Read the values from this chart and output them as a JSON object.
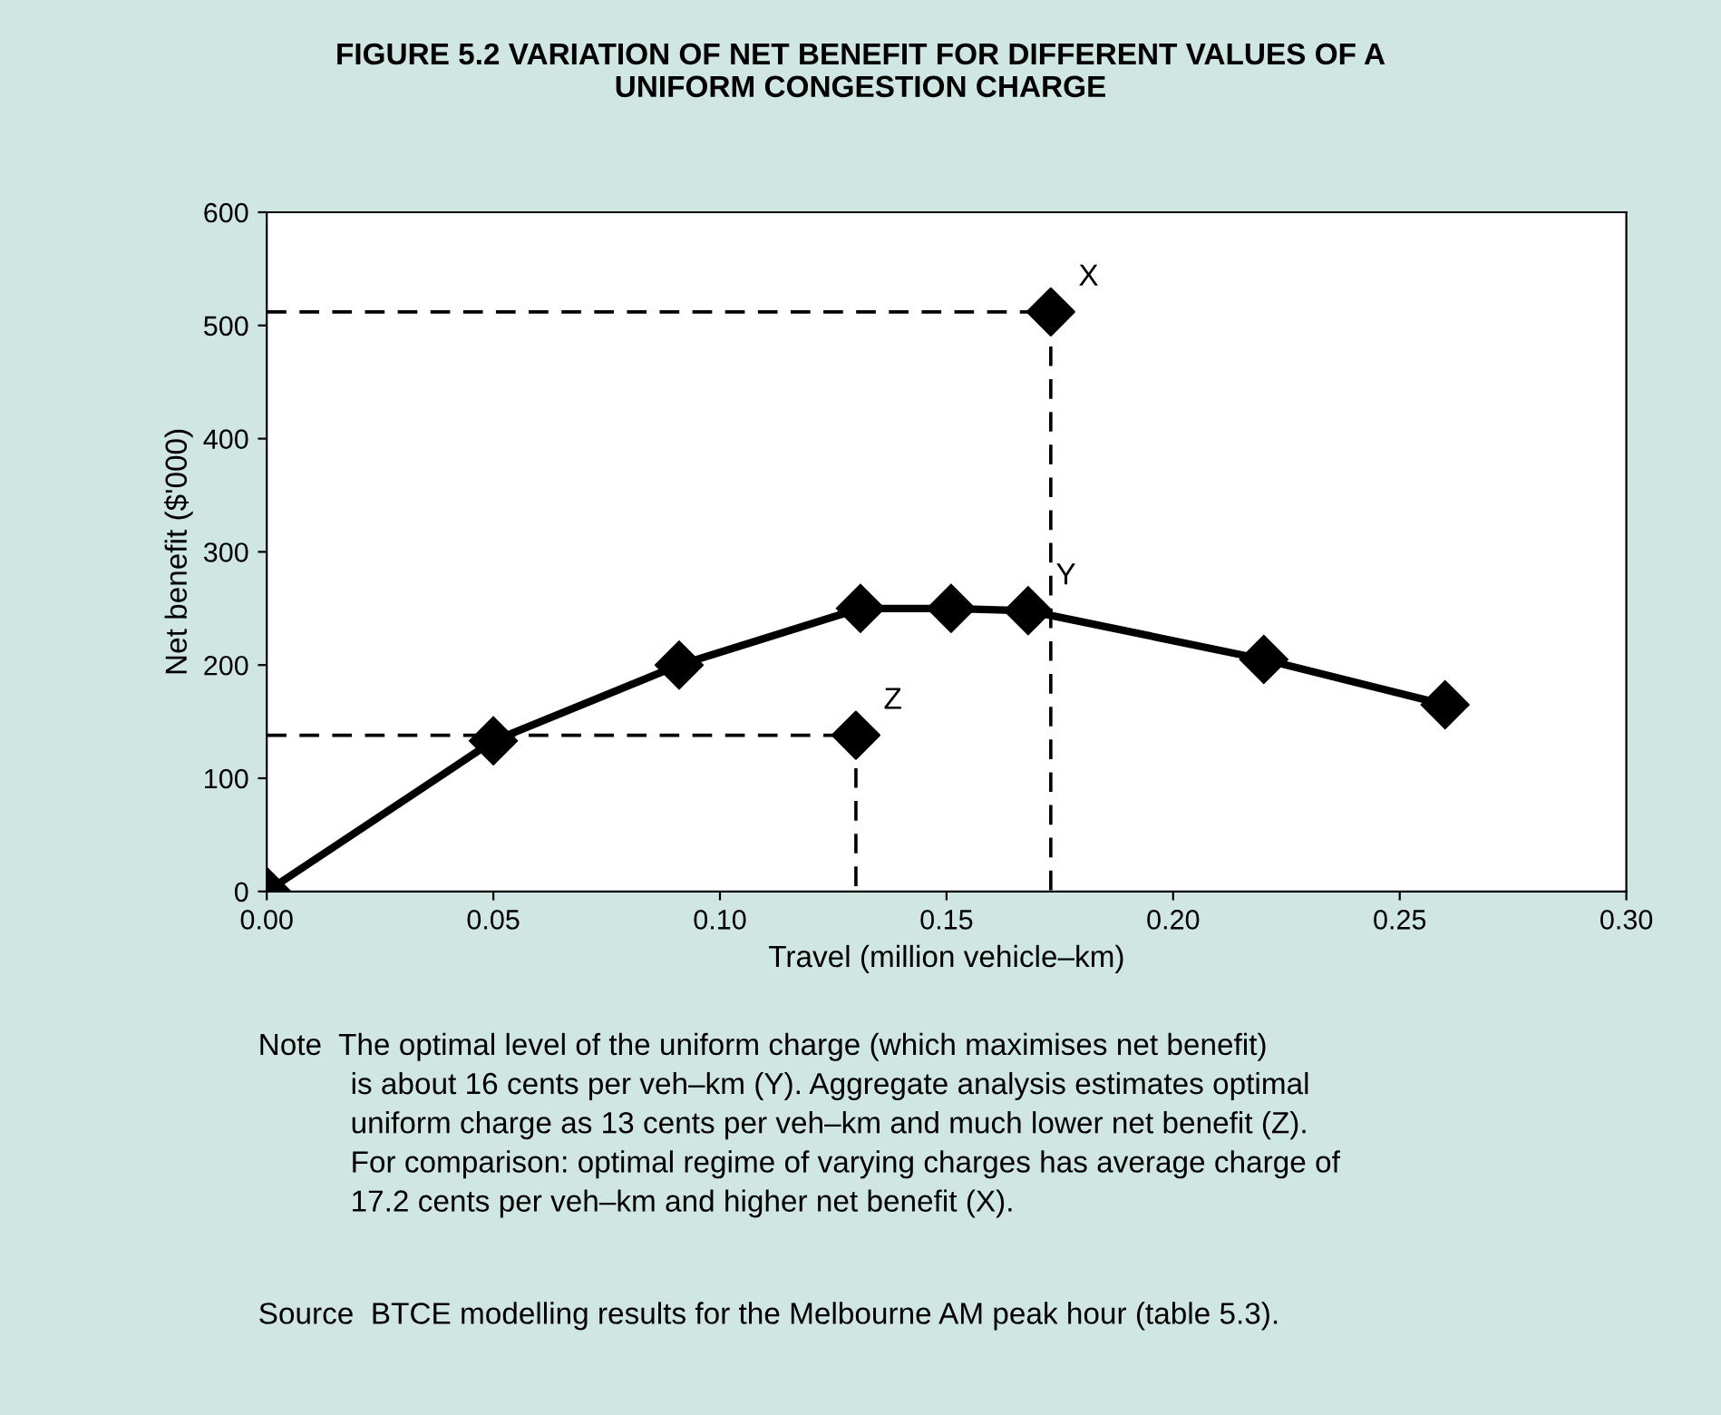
{
  "chart_data": {
    "type": "line",
    "title": "FIGURE 5.2 VARIATION OF NET BENEFIT FOR DIFFERENT VALUES OF A\nUNIFORM CONGESTION CHARGE",
    "xlabel": "Travel (million vehicle–km)",
    "ylabel": "Net benefit ($'000)",
    "xlim": [
      0,
      0.3
    ],
    "xticks": [
      {
        "value": 0,
        "label": "0.00"
      },
      {
        "value": 0.05,
        "label": "0.05"
      },
      {
        "value": 0.1,
        "label": "0.10"
      },
      {
        "value": 0.15,
        "label": "0.15"
      },
      {
        "value": 0.2,
        "label": "0.20"
      },
      {
        "value": 0.25,
        "label": "0.25"
      },
      {
        "value": 0.3,
        "label": "0.30"
      }
    ],
    "ylim": [
      0,
      600
    ],
    "yticks": [
      0,
      100,
      200,
      300,
      400,
      500,
      600
    ],
    "grid": false,
    "legend": false,
    "series": [
      {
        "type": "line",
        "color": "#000000",
        "marker": "none",
        "line_style": "dashed",
        "x": [
          0,
          0.173,
          0.173
        ],
        "values": [
          512,
          512,
          0
        ]
      },
      {
        "type": "line",
        "color": "#000000",
        "marker": "none",
        "line_style": "dashed",
        "x": [
          0,
          0.13,
          0.13
        ],
        "values": [
          138,
          138,
          0
        ]
      },
      {
        "color": "#000000",
        "marker": "diamond",
        "line_style": "solid",
        "x": [
          0,
          0.05,
          0.091,
          0.131,
          0.151,
          0.168,
          0.22,
          0.26
        ],
        "values": [
          0,
          133,
          200,
          250,
          250,
          248,
          205,
          165
        ]
      },
      {
        "type": "scatter",
        "color": "#000000",
        "marker": "diamond",
        "x": [
          0.173,
          0.13
        ],
        "values": [
          512,
          138
        ]
      }
    ],
    "annotations": [
      {
        "text": "X",
        "x": 0.173,
        "y": 512
      },
      {
        "text": "Y",
        "x": 0.168,
        "y": 248
      },
      {
        "text": "Z",
        "x": 0.13,
        "y": 138
      },
      "Note  The optimal level of the uniform charge (which maximises net benefit)\n           is about 16 cents per veh–km (Y). Aggregate analysis estimates optimal\n           uniform charge as 13 cents per veh–km and much lower net benefit (Z).\n           For comparison: optimal regime of varying charges has average charge of\n           17.2 cents per veh–km and higher net benefit (X).",
      "Source  BTCE modelling results for the Melbourne AM peak hour (table 5.3)."
    ]
  }
}
